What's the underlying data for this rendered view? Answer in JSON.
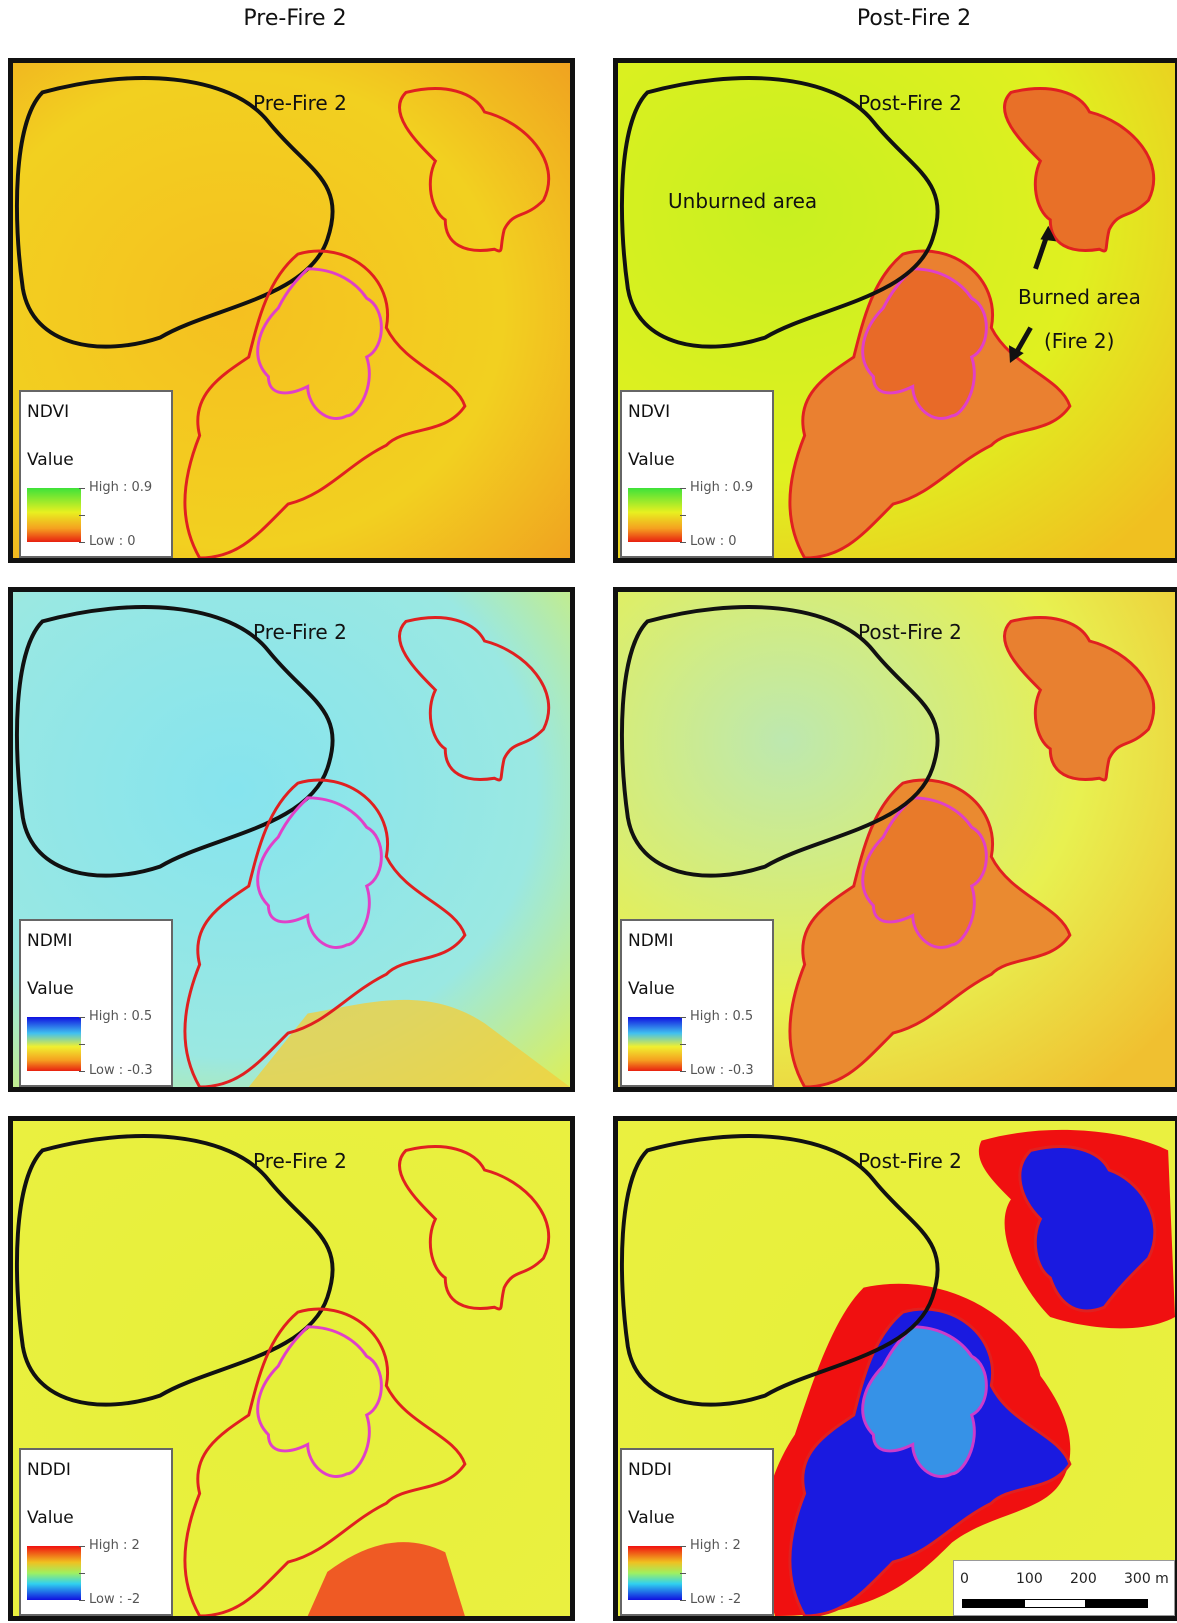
{
  "columns": {
    "left": "Pre-Fire 2",
    "right": "Post-Fire 2"
  },
  "colors": {
    "frame": "#111111",
    "unburned_outline": "#111111",
    "burned_outline": "#e02020",
    "inner_outline": "#e040c8",
    "yellow": "#f3ef1c",
    "orange": "#f0a020",
    "red_orange": "#e86020",
    "lime": "#c8f020",
    "cyan": "#8ee8ec",
    "blue": "#1a1ae0",
    "red": "#f01010"
  },
  "panels": [
    {
      "title": "Pre-Fire 2",
      "legend": {
        "index": "NDVI",
        "value_label": "Value",
        "high": "High : 0.9",
        "low": "Low : 0",
        "ramp": "ndvi"
      }
    },
    {
      "title": "Post-Fire 2",
      "legend": {
        "index": "NDVI",
        "value_label": "Value",
        "high": "High : 0.9",
        "low": "Low : 0",
        "ramp": "ndvi"
      }
    },
    {
      "title": "Pre-Fire 2",
      "legend": {
        "index": "NDMI",
        "value_label": "Value",
        "high": "High : 0.5",
        "low": "Low : -0.3",
        "ramp": "ndmi"
      }
    },
    {
      "title": "Post-Fire 2",
      "legend": {
        "index": "NDMI",
        "value_label": "Value",
        "high": "High : 0.5",
        "low": "Low : -0.3",
        "ramp": "ndmi"
      }
    },
    {
      "title": "Pre-Fire 2",
      "legend": {
        "index": "NDDI",
        "value_label": "Value",
        "high": "High : 2",
        "low": "Low : -2",
        "ramp": "nddi"
      }
    },
    {
      "title": "Post-Fire 2",
      "legend": {
        "index": "NDDI",
        "value_label": "Value",
        "high": "High : 2",
        "low": "Low : -2",
        "ramp": "nddi"
      }
    }
  ],
  "annotations": {
    "unburned": "Unburned area",
    "burned": "Burned area",
    "fire": "(Fire 2)"
  },
  "scale_bar": {
    "labels": [
      "0",
      "100",
      "200",
      "300 m"
    ]
  }
}
